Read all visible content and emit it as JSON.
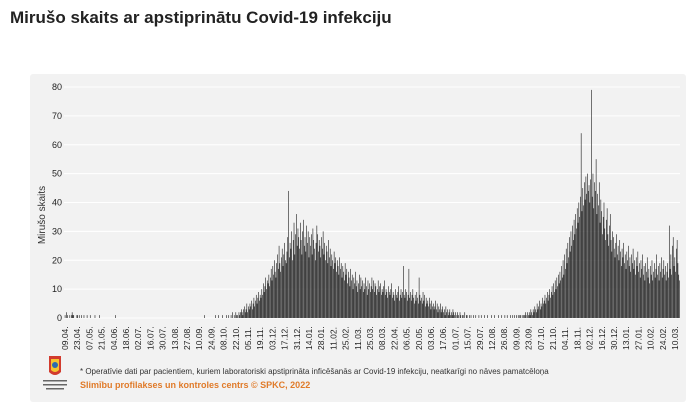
{
  "title": "Mirušo skaits ar apstiprinātu Covid-19 infekciju",
  "footnote": "* Operatīvie dati par pacientiem, kuriem laboratoriski apstiprināta inficēšanās ar Covid-19 infekciju, neatkarīgi no nāves pamatcēloņa",
  "credit": "Slimību profilakses un kontroles centrs © SPKC, 2022",
  "logo_text": "Slimību profilakses un kontroles centrs",
  "colors": {
    "bar": "#1a1a1a",
    "credit": "#e07b2a",
    "panel": "#f2f2f2",
    "grid": "#ffffff"
  },
  "chart_data": {
    "type": "bar",
    "title": "",
    "ylabel": "Mirušo skaits",
    "xlabel": "",
    "ylim": [
      0,
      80
    ],
    "yticks": [
      0,
      10,
      20,
      30,
      40,
      50,
      60,
      70,
      80
    ],
    "grid": true,
    "x_start": "2020-04-09",
    "x_end": "2022-03-10",
    "xticks": [
      "09.04.",
      "23.04.",
      "07.05.",
      "21.05.",
      "04.06.",
      "18.06.",
      "02.07.",
      "16.07.",
      "30.07.",
      "13.08.",
      "27.08.",
      "10.09.",
      "24.09.",
      "08.10.",
      "22.10.",
      "05.11.",
      "19.11.",
      "03.12.",
      "17.12.",
      "31.12.",
      "14.01.",
      "28.01.",
      "11.02.",
      "25.02.",
      "11.03.",
      "25.03.",
      "08.03.",
      "22.04.",
      "06.05.",
      "20.05.",
      "03.06.",
      "17.06.",
      "01.07.",
      "15.07.",
      "29.07.",
      "12.08.",
      "26.08.",
      "09.09.",
      "23.09.",
      "07.10.",
      "21.10.",
      "04.11.",
      "18.11.",
      "02.12.",
      "16.12.",
      "30.12.",
      "13.01.",
      "27.01.",
      "10.02.",
      "24.02.",
      "10.03."
    ],
    "series": [
      {
        "name": "",
        "values": [
          0,
          1,
          0,
          2,
          1,
          0,
          0,
          1,
          0,
          1,
          2,
          1,
          1,
          0,
          0,
          0,
          1,
          1,
          0,
          1,
          0,
          0,
          1,
          0,
          0,
          1,
          0,
          0,
          0,
          1,
          0,
          0,
          0,
          1,
          0,
          0,
          0,
          0,
          0,
          1,
          0,
          0,
          0,
          0,
          0,
          1,
          0,
          0,
          0,
          0,
          0,
          0,
          0,
          0,
          0,
          0,
          0,
          0,
          0,
          0,
          0,
          0,
          0,
          0,
          0,
          1,
          0,
          0,
          0,
          0,
          0,
          0,
          0,
          0,
          0,
          0,
          0,
          0,
          0,
          0,
          0,
          0,
          0,
          0,
          0,
          0,
          0,
          0,
          0,
          0,
          0,
          0,
          0,
          0,
          0,
          0,
          0,
          0,
          0,
          0,
          0,
          0,
          0,
          0,
          0,
          0,
          0,
          0,
          0,
          0,
          0,
          0,
          0,
          0,
          0,
          0,
          0,
          0,
          0,
          0,
          0,
          0,
          0,
          0,
          0,
          0,
          0,
          0,
          0,
          0,
          0,
          0,
          0,
          0,
          0,
          0,
          0,
          0,
          0,
          0,
          0,
          0,
          0,
          0,
          0,
          0,
          0,
          0,
          0,
          0,
          0,
          0,
          0,
          0,
          0,
          0,
          0,
          0,
          0,
          0,
          0,
          0,
          0,
          0,
          0,
          0,
          0,
          0,
          0,
          0,
          0,
          0,
          0,
          0,
          0,
          0,
          0,
          0,
          1,
          0,
          0,
          0,
          0,
          0,
          0,
          0,
          0,
          0,
          0,
          0,
          0,
          0,
          1,
          0,
          0,
          0,
          1,
          0,
          0,
          0,
          0,
          1,
          0,
          0,
          0,
          0,
          1,
          0,
          0,
          1,
          0,
          0,
          1,
          0,
          2,
          0,
          1,
          0,
          2,
          1,
          1,
          0,
          2,
          1,
          2,
          3,
          2,
          1,
          3,
          4,
          2,
          3,
          5,
          2,
          4,
          3,
          5,
          4,
          6,
          3,
          5,
          7,
          4,
          6,
          8,
          5,
          7,
          9,
          6,
          8,
          7,
          10,
          8,
          12,
          9,
          11,
          14,
          10,
          13,
          12,
          15,
          11,
          14,
          17,
          13,
          18,
          15,
          20,
          16,
          14,
          19,
          22,
          17,
          25,
          19,
          16,
          21,
          24,
          18,
          22,
          26,
          20,
          19,
          23,
          28,
          44,
          21,
          26,
          24,
          30,
          20,
          27,
          33,
          22,
          29,
          36,
          25,
          31,
          28,
          24,
          33,
          27,
          22,
          30,
          34,
          25,
          28,
          23,
          32,
          26,
          30,
          21,
          28,
          25,
          29,
          22,
          31,
          27,
          24,
          20,
          26,
          32,
          29,
          23,
          27,
          25,
          21,
          28,
          24,
          30,
          22,
          26,
          20,
          25,
          23,
          19,
          27,
          21,
          24,
          18,
          22,
          20,
          17,
          23,
          19,
          21,
          16,
          20,
          18,
          15,
          21,
          17,
          19,
          14,
          18,
          16,
          13,
          19,
          15,
          17,
          12,
          16,
          14,
          11,
          17,
          13,
          15,
          10,
          14,
          12,
          16,
          11,
          13,
          9,
          12,
          15,
          10,
          14,
          11,
          13,
          9,
          12,
          10,
          14,
          11,
          8,
          13,
          10,
          12,
          9,
          11,
          14,
          10,
          13,
          9,
          12,
          11,
          8,
          10,
          13,
          9,
          11,
          12,
          8,
          10,
          9,
          11,
          13,
          8,
          10,
          9,
          7,
          11,
          9,
          8,
          10,
          12,
          7,
          9,
          8,
          6,
          10,
          8,
          7,
          9,
          11,
          6,
          8,
          10,
          7,
          9,
          18,
          8,
          7,
          10,
          9,
          6,
          8,
          17,
          7,
          9,
          6,
          8,
          10,
          7,
          5,
          8,
          6,
          9,
          7,
          5,
          14,
          8,
          6,
          7,
          5,
          9,
          6,
          8,
          4,
          7,
          5,
          6,
          4,
          7,
          5,
          3,
          6,
          4,
          5,
          3,
          4,
          6,
          3,
          5,
          2,
          4,
          3,
          5,
          2,
          3,
          4,
          2,
          3,
          1,
          4,
          2,
          3,
          1,
          2,
          3,
          1,
          2,
          1,
          3,
          2,
          1,
          2,
          0,
          1,
          2,
          1,
          0,
          2,
          1,
          0,
          1,
          1,
          0,
          2,
          0,
          1,
          1,
          0,
          0,
          1,
          0,
          1,
          0,
          0,
          1,
          0,
          0,
          1,
          0,
          0,
          0,
          1,
          0,
          0,
          1,
          0,
          0,
          0,
          1,
          0,
          0,
          0,
          1,
          0,
          0,
          0,
          0,
          1,
          0,
          0,
          0,
          1,
          0,
          0,
          0,
          0,
          1,
          0,
          0,
          0,
          1,
          0,
          0,
          0,
          1,
          0,
          0,
          1,
          0,
          0,
          0,
          1,
          0,
          0,
          1,
          0,
          1,
          0,
          0,
          1,
          0,
          1,
          0,
          1,
          1,
          0,
          1,
          0,
          1,
          1,
          2,
          1,
          0,
          2,
          1,
          2,
          1,
          3,
          2,
          1,
          3,
          2,
          4,
          3,
          2,
          5,
          3,
          4,
          6,
          3,
          5,
          4,
          7,
          5,
          6,
          8,
          5,
          7,
          9,
          6,
          8,
          10,
          7,
          9,
          11,
          8,
          12,
          9,
          13,
          10,
          14,
          11,
          15,
          12,
          16,
          13,
          18,
          14,
          20,
          15,
          22,
          17,
          24,
          19,
          26,
          21,
          28,
          23,
          30,
          25,
          32,
          27,
          34,
          29,
          36,
          31,
          38,
          33,
          40,
          35,
          42,
          64,
          37,
          45,
          39,
          47,
          41,
          49,
          43,
          50,
          44,
          46,
          40,
          48,
          79,
          42,
          50,
          38,
          47,
          44,
          55,
          36,
          43,
          39,
          47,
          33,
          41,
          37,
          29,
          35,
          40,
          31,
          27,
          34,
          38,
          29,
          25,
          32,
          36,
          27,
          23,
          30,
          28,
          24,
          21,
          26,
          29,
          22,
          25,
          20,
          27,
          23,
          18,
          24,
          21,
          26,
          19,
          22,
          17,
          23,
          20,
          25,
          18,
          21,
          16,
          22,
          19,
          24,
          17,
          20,
          15,
          21,
          18,
          23,
          16,
          19,
          14,
          20,
          17,
          22,
          15,
          18,
          13,
          19,
          16,
          21,
          14,
          17,
          12,
          18,
          15,
          20,
          13,
          16,
          19,
          14,
          17,
          22,
          15,
          18,
          13,
          19,
          16,
          21,
          14,
          17,
          20,
          15,
          18,
          13,
          16,
          19,
          14,
          32,
          17,
          22,
          15,
          25,
          28,
          18,
          21,
          16,
          24,
          27,
          19,
          15,
          13
        ]
      }
    ]
  }
}
